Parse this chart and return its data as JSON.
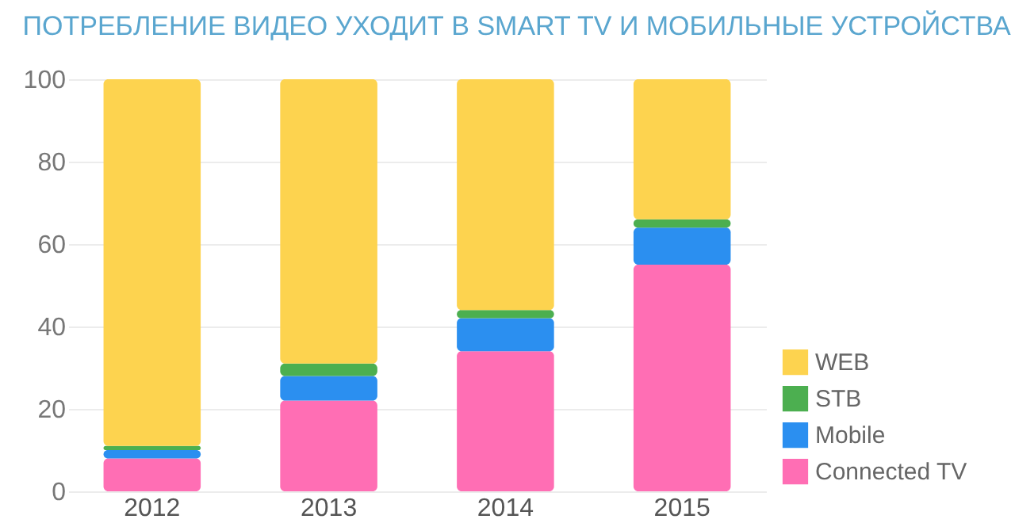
{
  "chart_data": {
    "type": "bar",
    "title": "ПОТРЕБЛЕНИЕ ВИДЕО УХОДИТ В SMART TV И МОБИЛЬНЫЕ УСТРОЙСТВА",
    "categories": [
      "2012",
      "2013",
      "2014",
      "2015"
    ],
    "stacked": true,
    "series": [
      {
        "name": "Connected TV",
        "color": "#ff6eb4",
        "values": [
          8,
          22,
          34,
          55
        ]
      },
      {
        "name": "Mobile",
        "color": "#2b8ff0",
        "values": [
          2,
          6,
          8,
          9
        ]
      },
      {
        "name": "STB",
        "color": "#4caf50",
        "values": [
          1,
          3,
          2,
          2
        ]
      },
      {
        "name": "WEB",
        "color": "#fdd34f",
        "values": [
          89,
          69,
          56,
          34
        ]
      }
    ],
    "ylim": [
      0,
      100
    ],
    "yticks": [
      0,
      20,
      40,
      60,
      80,
      100
    ],
    "grid": "y",
    "legend": "bottom right"
  }
}
